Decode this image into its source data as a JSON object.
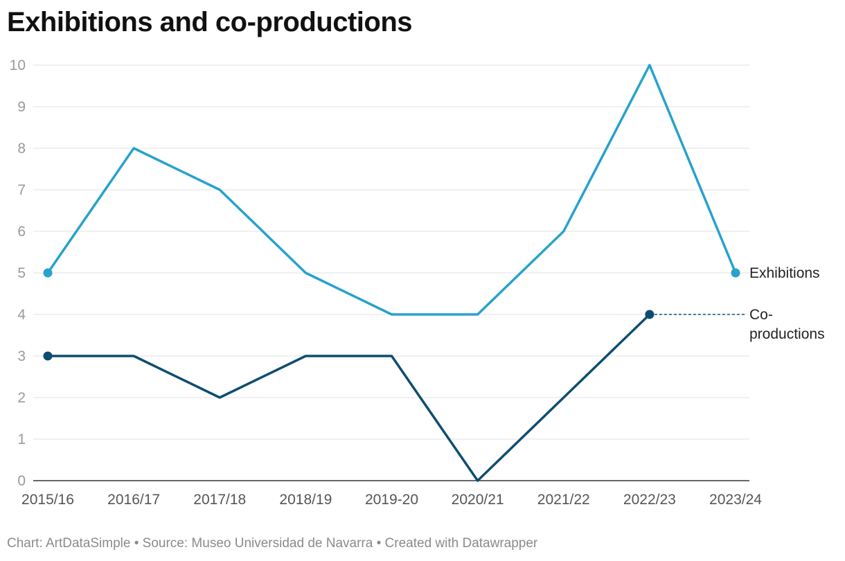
{
  "chart_data": {
    "type": "line",
    "title": "Exhibitions and co-productions",
    "categories": [
      "2015/16",
      "2016/17",
      "2017/18",
      "2018/19",
      "2019-20",
      "2020/21",
      "2021/22",
      "2022/23",
      "2023/24"
    ],
    "ylim": [
      0,
      10
    ],
    "yticks": [
      0,
      1,
      2,
      3,
      4,
      5,
      6,
      7,
      8,
      9,
      10
    ],
    "grid": true,
    "legend": "direct labels at line ends",
    "series": [
      {
        "name": "Exhibitions",
        "label_lines": [
          "Exhibitions"
        ],
        "color": "#26a2cc",
        "values": [
          5,
          8,
          7,
          5,
          4,
          4,
          6,
          10,
          5
        ]
      },
      {
        "name": "Co-productions",
        "label_lines": [
          "Co-",
          "productions"
        ],
        "color": "#0e4d70",
        "values": [
          3,
          3,
          2,
          3,
          3,
          0,
          2,
          4,
          null
        ]
      }
    ]
  },
  "footer": "Chart: ArtDataSimple • Source: Museo Universidad de Navarra • Created with Datawrapper"
}
